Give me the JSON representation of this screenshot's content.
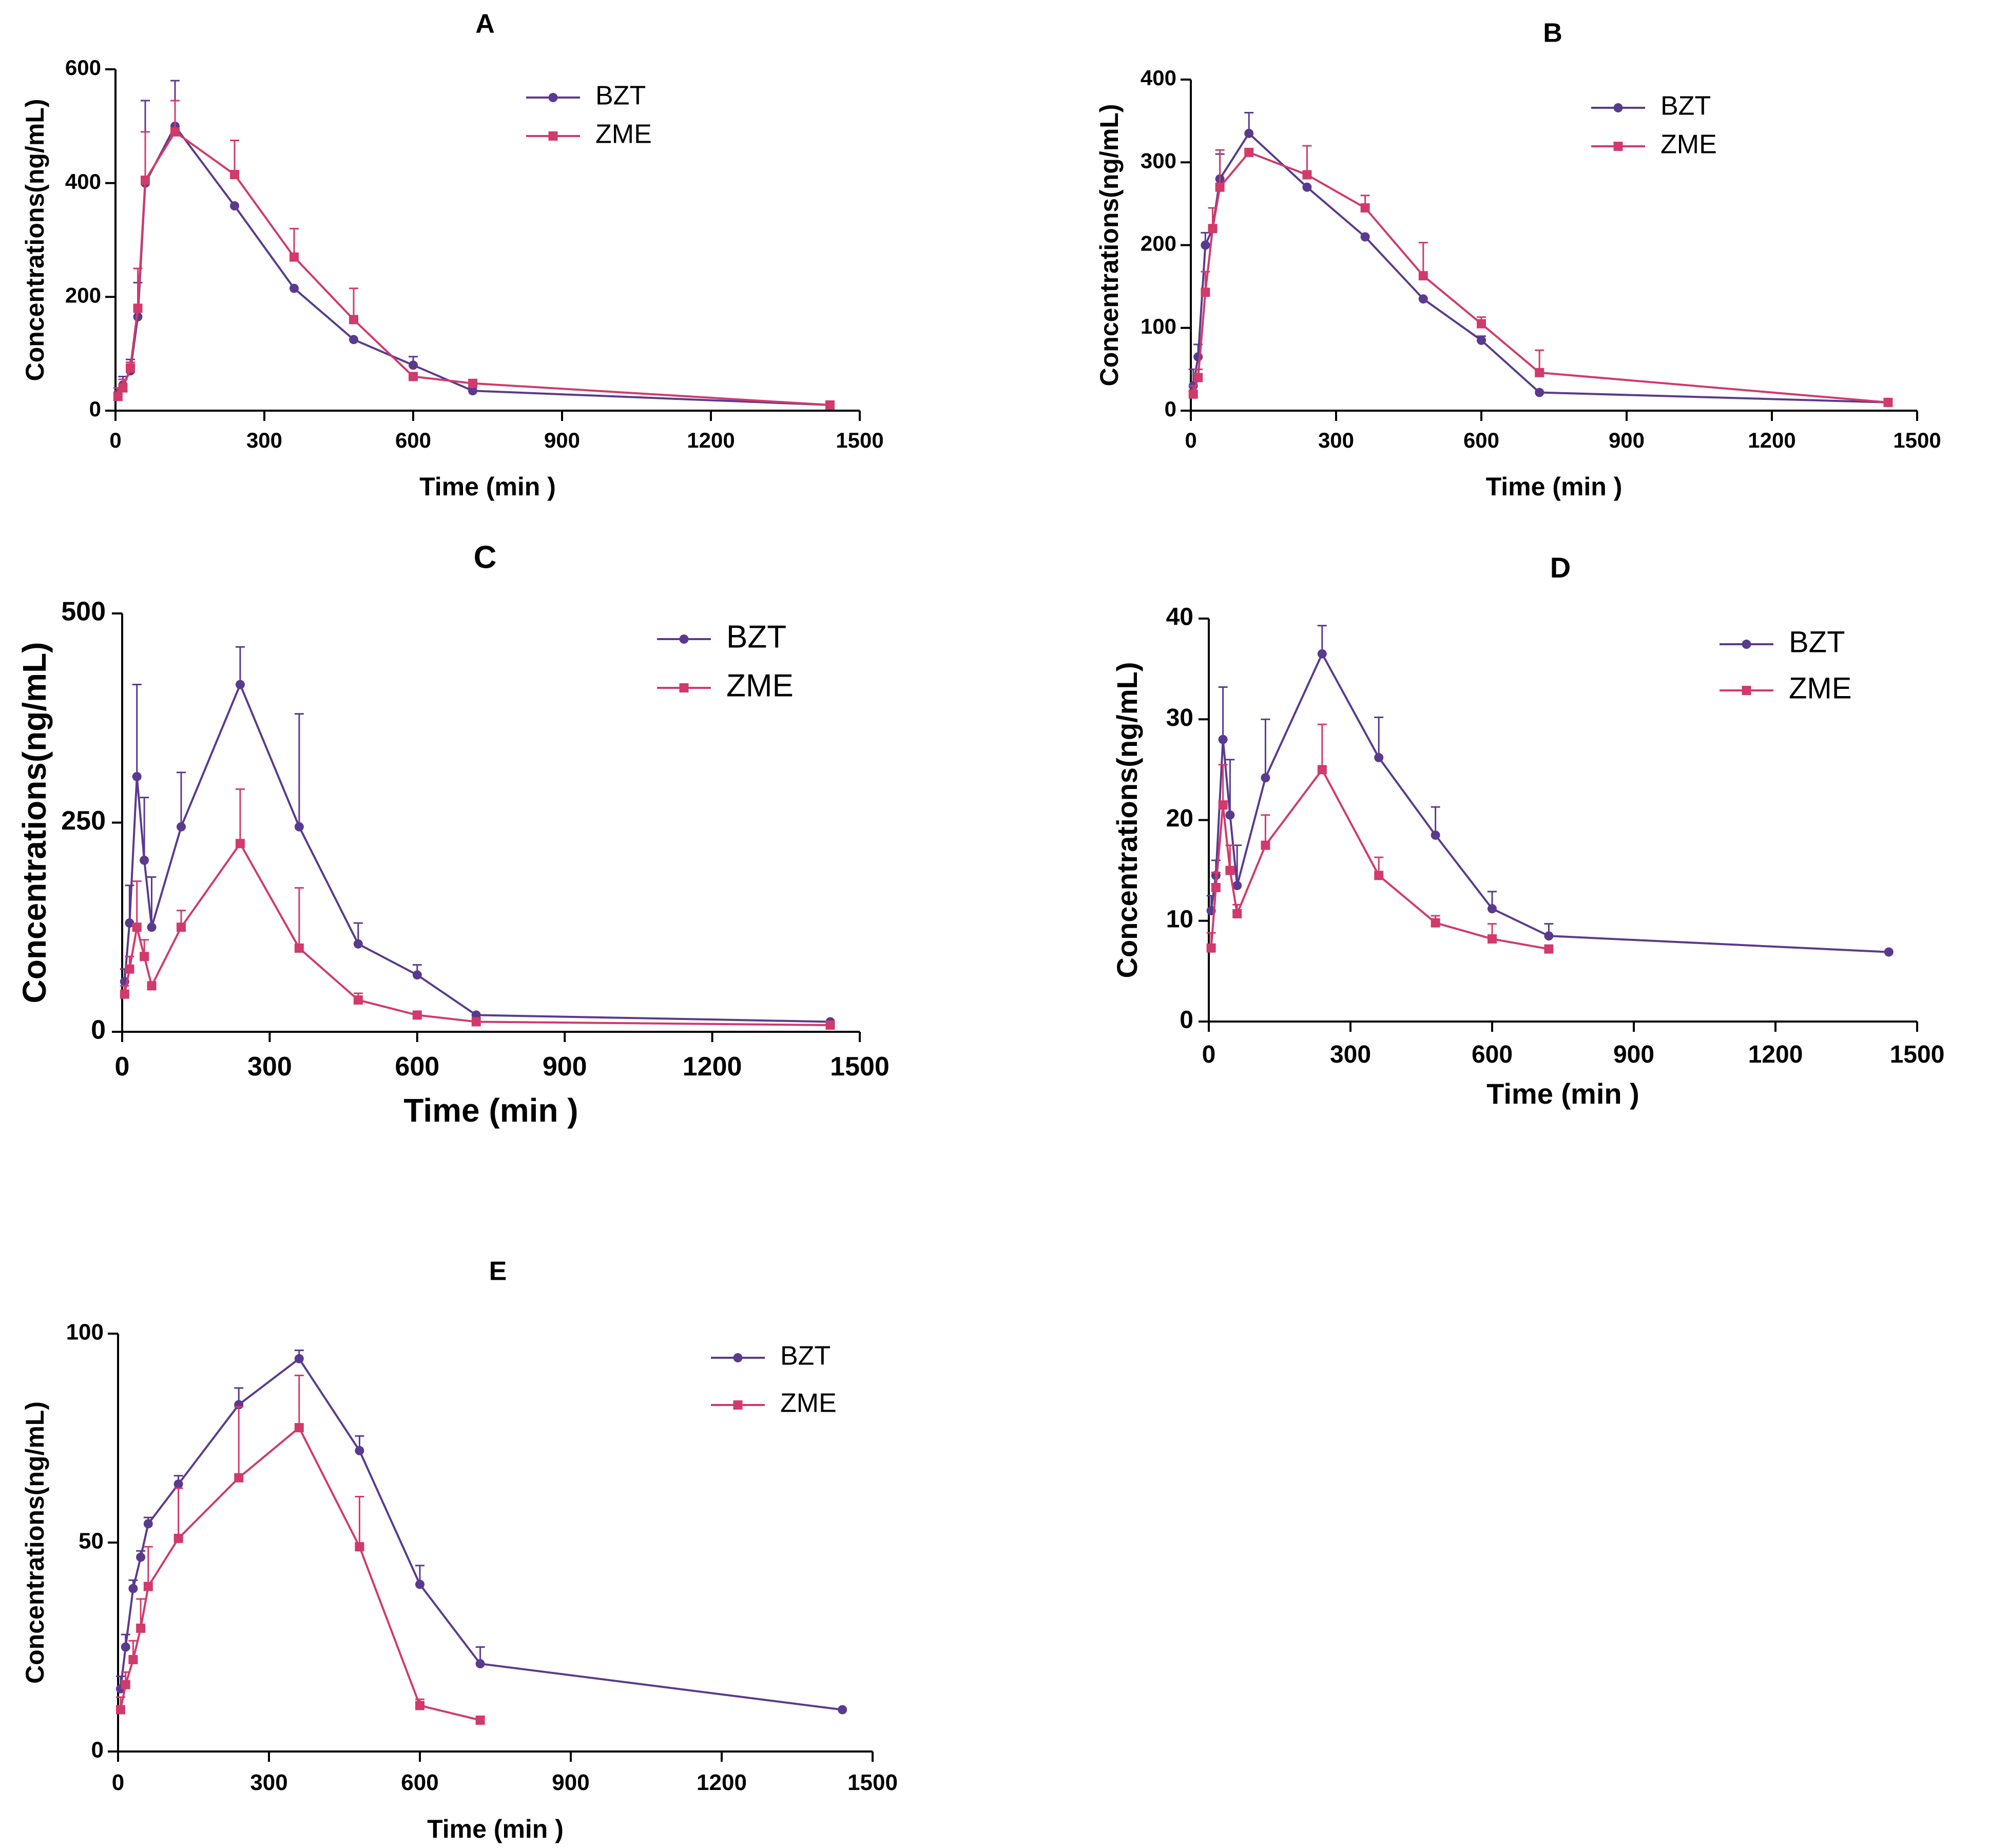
{
  "colors": {
    "BZT": "#5a3a8e",
    "ZME": "#d13a6b",
    "axis": "#000000",
    "background": "#ffffff"
  },
  "chart_data": [
    {
      "id": "A",
      "type": "line",
      "title": "A",
      "xlabel": "Time (min )",
      "ylabel": "Concentrations(ng/mL)",
      "xlim": [
        0,
        1500
      ],
      "ylim": [
        0,
        600
      ],
      "xticks": [
        0,
        300,
        600,
        900,
        1200,
        1500
      ],
      "yticks": [
        0,
        200,
        400,
        600
      ],
      "x_tick_labels": [
        "0",
        "300",
        "600",
        "900",
        "1200",
        "1500"
      ],
      "y_tick_labels": [
        "0",
        "200",
        "400",
        "600"
      ],
      "grid": false,
      "legend": "top-right",
      "series": [
        {
          "name": "BZT",
          "marker": "circle",
          "x": [
            5,
            15,
            30,
            45,
            60,
            120,
            240,
            360,
            480,
            600,
            720,
            1440
          ],
          "y": [
            30,
            45,
            70,
            165,
            400,
            500,
            360,
            215,
            125,
            80,
            35,
            10
          ],
          "err": [
            10,
            15,
            20,
            60,
            145,
            80,
            0,
            0,
            0,
            15,
            0,
            0
          ]
        },
        {
          "name": "ZME",
          "marker": "square",
          "x": [
            5,
            15,
            30,
            45,
            60,
            120,
            240,
            360,
            480,
            600,
            720,
            1440
          ],
          "y": [
            25,
            40,
            75,
            180,
            405,
            490,
            415,
            270,
            160,
            60,
            48,
            10
          ],
          "err": [
            15,
            15,
            10,
            70,
            85,
            55,
            60,
            50,
            55,
            0,
            0,
            0
          ]
        }
      ]
    },
    {
      "id": "B",
      "type": "line",
      "title": "B",
      "xlabel": "Time (min )",
      "ylabel": "Concentrations(ng/mL)",
      "xlim": [
        0,
        1500
      ],
      "ylim": [
        0,
        400
      ],
      "xticks": [
        0,
        300,
        600,
        900,
        1200,
        1500
      ],
      "yticks": [
        0,
        100,
        200,
        300,
        400
      ],
      "x_tick_labels": [
        "0",
        "300",
        "600",
        "900",
        "1200",
        "1500"
      ],
      "y_tick_labels": [
        "0",
        "100",
        "200",
        "300",
        "400"
      ],
      "grid": false,
      "legend": "top-right",
      "series": [
        {
          "name": "BZT",
          "marker": "circle",
          "x": [
            5,
            15,
            30,
            45,
            60,
            120,
            240,
            360,
            480,
            600,
            720,
            1440
          ],
          "y": [
            30,
            65,
            200,
            220,
            280,
            335,
            270,
            210,
            135,
            85,
            22,
            10
          ],
          "err": [
            20,
            15,
            15,
            0,
            30,
            25,
            0,
            0,
            0,
            5,
            0,
            0
          ]
        },
        {
          "name": "ZME",
          "marker": "square",
          "x": [
            5,
            15,
            30,
            45,
            60,
            120,
            240,
            360,
            480,
            600,
            720,
            1440
          ],
          "y": [
            20,
            40,
            143,
            220,
            270,
            312,
            285,
            245,
            163,
            105,
            46,
            10
          ],
          "err": [
            10,
            10,
            25,
            25,
            45,
            0,
            35,
            15,
            40,
            8,
            27,
            0
          ]
        }
      ]
    },
    {
      "id": "C",
      "type": "line",
      "title": "C",
      "xlabel": "Time (min )",
      "ylabel": "Concentrations(ng/mL)",
      "xlim": [
        0,
        1500
      ],
      "ylim": [
        0,
        500
      ],
      "xticks": [
        0,
        300,
        600,
        900,
        1200,
        1500
      ],
      "yticks": [
        0,
        250,
        500
      ],
      "x_tick_labels": [
        "0",
        "300",
        "600",
        "900",
        "1200",
        "1500"
      ],
      "y_tick_labels": [
        "0",
        "250",
        "500"
      ],
      "grid": false,
      "legend": "top-right",
      "series": [
        {
          "name": "BZT",
          "marker": "circle",
          "x": [
            5,
            15,
            30,
            45,
            60,
            120,
            240,
            360,
            480,
            600,
            720,
            1440
          ],
          "y": [
            60,
            130,
            305,
            205,
            125,
            245,
            415,
            245,
            105,
            68,
            20,
            12
          ],
          "err": [
            15,
            45,
            110,
            75,
            60,
            65,
            45,
            135,
            25,
            12,
            0,
            0
          ]
        },
        {
          "name": "ZME",
          "marker": "square",
          "x": [
            5,
            15,
            30,
            45,
            60,
            120,
            240,
            360,
            480,
            600,
            720,
            1440
          ],
          "y": [
            45,
            75,
            125,
            90,
            55,
            125,
            225,
            100,
            38,
            20,
            12,
            8
          ],
          "err": [
            10,
            15,
            55,
            20,
            0,
            20,
            65,
            72,
            8,
            0,
            0,
            0
          ]
        }
      ]
    },
    {
      "id": "D",
      "type": "line",
      "title": "D",
      "xlabel": "Time (min )",
      "ylabel": "Concentrations(ng/mL)",
      "xlim": [
        0,
        1500
      ],
      "ylim": [
        0,
        40
      ],
      "xticks": [
        0,
        300,
        600,
        900,
        1200,
        1500
      ],
      "yticks": [
        0,
        10,
        20,
        30,
        40
      ],
      "x_tick_labels": [
        "0",
        "300",
        "600",
        "900",
        "1200",
        "1500"
      ],
      "y_tick_labels": [
        "0",
        "10",
        "20",
        "30",
        "40"
      ],
      "grid": false,
      "legend": "top-right",
      "series": [
        {
          "name": "BZT",
          "marker": "circle",
          "x": [
            5,
            15,
            30,
            45,
            60,
            120,
            240,
            360,
            480,
            600,
            720,
            1440
          ],
          "y": [
            11,
            14.5,
            28,
            20.5,
            13.5,
            24.2,
            36.5,
            26.2,
            18.5,
            11.2,
            8.5,
            6.9
          ],
          "err": [
            1.5,
            1.5,
            5.2,
            5.5,
            4,
            5.8,
            2.8,
            4,
            2.8,
            1.7,
            1.2,
            0
          ]
        },
        {
          "name": "ZME",
          "marker": "square",
          "x": [
            5,
            15,
            30,
            45,
            60,
            120,
            240,
            360,
            480,
            600,
            720
          ],
          "y": [
            7.3,
            13.3,
            21.5,
            15,
            10.7,
            17.5,
            25,
            14.5,
            9.8,
            8.2,
            7.2
          ],
          "err": [
            1.5,
            1.5,
            4,
            2.5,
            0.9,
            3,
            4.5,
            1.8,
            0.7,
            1.5,
            0
          ]
        }
      ]
    },
    {
      "id": "E",
      "type": "line",
      "title": "E",
      "xlabel": "Time (min )",
      "ylabel": "Concentrations(ng/mL)",
      "xlim": [
        0,
        1500
      ],
      "ylim": [
        0,
        100
      ],
      "xticks": [
        0,
        300,
        600,
        900,
        1200,
        1500
      ],
      "yticks": [
        0,
        50,
        100
      ],
      "x_tick_labels": [
        "0",
        "300",
        "600",
        "900",
        "1200",
        "1500"
      ],
      "y_tick_labels": [
        "0",
        "50",
        "100"
      ],
      "grid": false,
      "legend": "top-right",
      "series": [
        {
          "name": "BZT",
          "marker": "circle",
          "x": [
            5,
            15,
            30,
            45,
            60,
            120,
            240,
            360,
            480,
            600,
            720,
            1440
          ],
          "y": [
            15,
            25,
            39,
            46.5,
            54.5,
            64,
            83,
            94,
            72,
            40,
            21,
            10
          ],
          "err": [
            3,
            3,
            2,
            1.5,
            1.5,
            2,
            4,
            2,
            3.5,
            4.5,
            4,
            0
          ]
        },
        {
          "name": "ZME",
          "marker": "square",
          "x": [
            5,
            15,
            30,
            45,
            60,
            120,
            240,
            360,
            480,
            600,
            720
          ],
          "y": [
            10,
            16,
            22,
            29.5,
            39.5,
            51,
            65.5,
            77.5,
            49,
            11,
            7.5
          ],
          "err": [
            3,
            3,
            4.5,
            7,
            9.5,
            12,
            17,
            12.5,
            12,
            1.5,
            0.5
          ]
        }
      ]
    }
  ]
}
